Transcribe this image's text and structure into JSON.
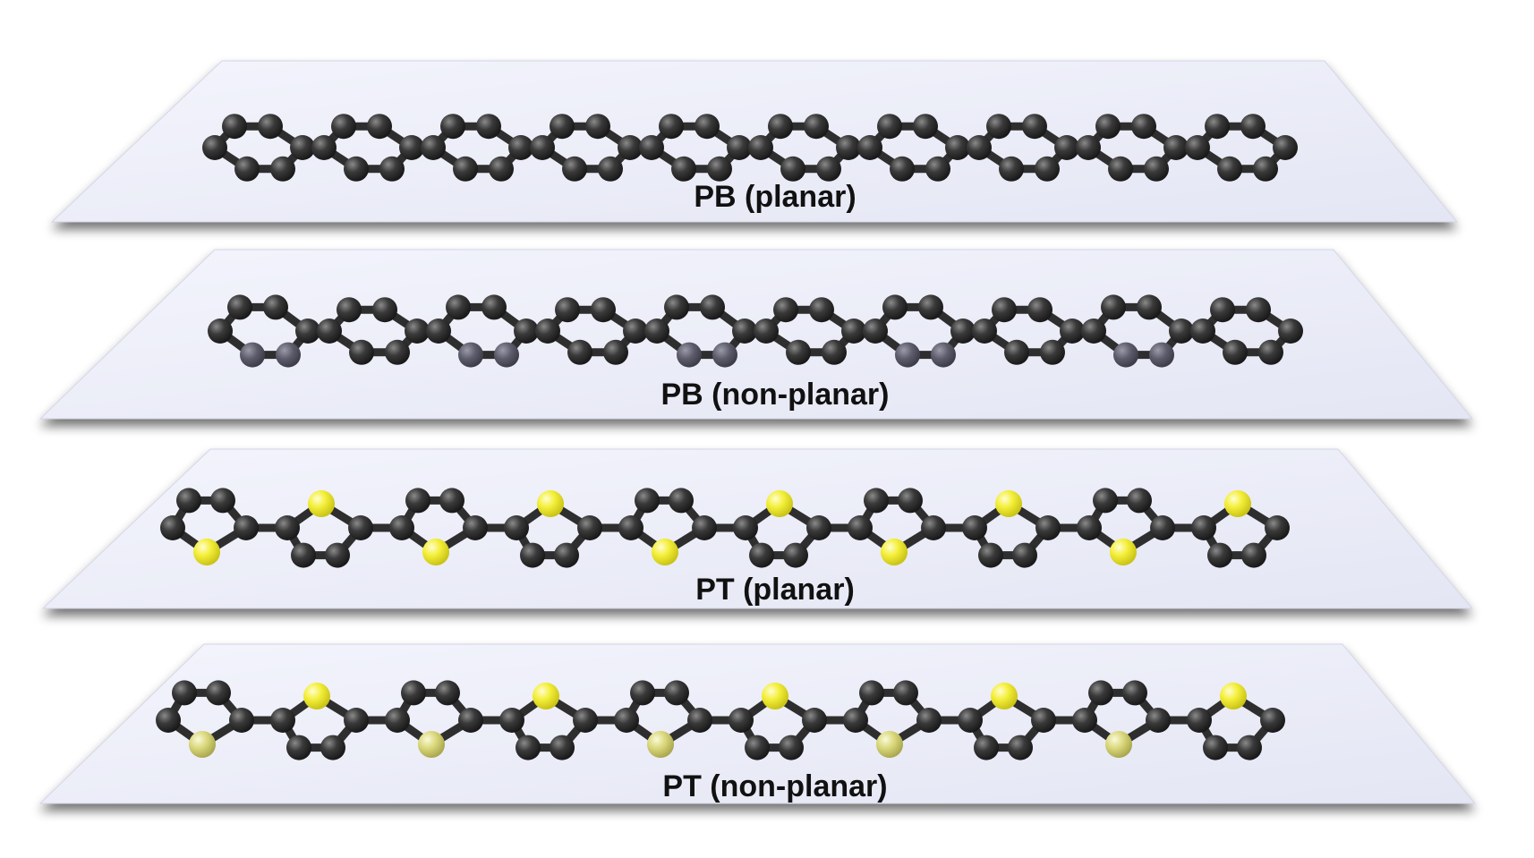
{
  "figure": {
    "panels": [
      {
        "label": "PB (planar)",
        "ring": "benzene",
        "planar": true,
        "units": 10
      },
      {
        "label": "PB (non-planar)",
        "ring": "benzene",
        "planar": false,
        "units": 10
      },
      {
        "label": "PT (planar)",
        "ring": "thiophene",
        "planar": true,
        "units": 10
      },
      {
        "label": "PT (non-planar)",
        "ring": "thiophene",
        "planar": false,
        "units": 10
      }
    ],
    "colors": {
      "carbon": "#3a3a3a",
      "carbon_tilted": "#5f5f6e",
      "sulfur": "#f2ee3a",
      "bond": "#2e2e2e",
      "plane": "#eceef9",
      "plane_edge": "#d4d6e6"
    }
  }
}
